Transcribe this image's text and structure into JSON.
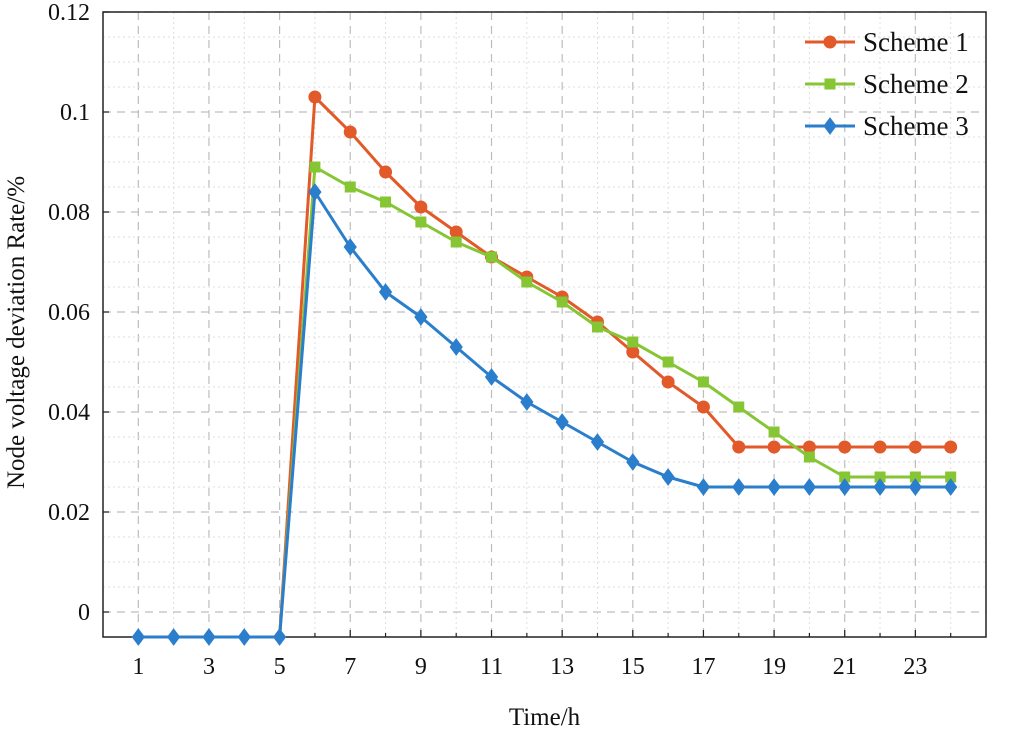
{
  "chart_data": {
    "type": "line",
    "xlabel": "Time/h",
    "ylabel": "Node voltage deviation Rate/%",
    "xlim": [
      0,
      25
    ],
    "ylim": [
      -0.005,
      0.12
    ],
    "x_ticks": [
      1,
      3,
      5,
      7,
      9,
      11,
      13,
      15,
      17,
      19,
      21,
      23
    ],
    "y_ticks": [
      0,
      0.02,
      0.04,
      0.06,
      0.08,
      0.1,
      0.12
    ],
    "y_tick_labels": [
      "0",
      "0.02",
      "0.04",
      "0.06",
      "0.08",
      "0.1",
      "0.12"
    ],
    "x_tick_labels": [
      "1",
      "3",
      "5",
      "7",
      "9",
      "11",
      "13",
      "15",
      "17",
      "19",
      "21",
      "23"
    ],
    "grid": true,
    "legend_position": "top-right",
    "x": [
      1,
      2,
      3,
      4,
      5,
      6,
      7,
      8,
      9,
      10,
      11,
      12,
      13,
      14,
      15,
      16,
      17,
      18,
      19,
      20,
      21,
      22,
      23,
      24
    ],
    "series": [
      {
        "name": "Scheme 1",
        "color": "#E2592A",
        "marker": "circle",
        "values": [
          null,
          null,
          null,
          null,
          -0.005,
          0.103,
          0.096,
          0.088,
          0.081,
          0.076,
          0.071,
          0.067,
          0.063,
          0.058,
          0.052,
          0.046,
          0.041,
          0.033,
          0.033,
          0.033,
          0.033,
          0.033,
          0.033,
          0.033
        ]
      },
      {
        "name": "Scheme 2",
        "color": "#86C534",
        "marker": "square",
        "values": [
          null,
          null,
          null,
          null,
          -0.005,
          0.089,
          0.085,
          0.082,
          0.078,
          0.074,
          0.071,
          0.066,
          0.062,
          0.057,
          0.054,
          0.05,
          0.046,
          0.041,
          0.036,
          0.031,
          0.027,
          0.027,
          0.027,
          0.027
        ]
      },
      {
        "name": "Scheme 3",
        "color": "#2B7ECC",
        "marker": "diamond",
        "values": [
          -0.005,
          -0.005,
          -0.005,
          -0.005,
          -0.005,
          0.084,
          0.073,
          0.064,
          0.059,
          0.053,
          0.047,
          0.042,
          0.038,
          0.034,
          0.03,
          0.027,
          0.025,
          0.025,
          0.025,
          0.025,
          0.025,
          0.025,
          0.025,
          0.025
        ]
      }
    ]
  }
}
